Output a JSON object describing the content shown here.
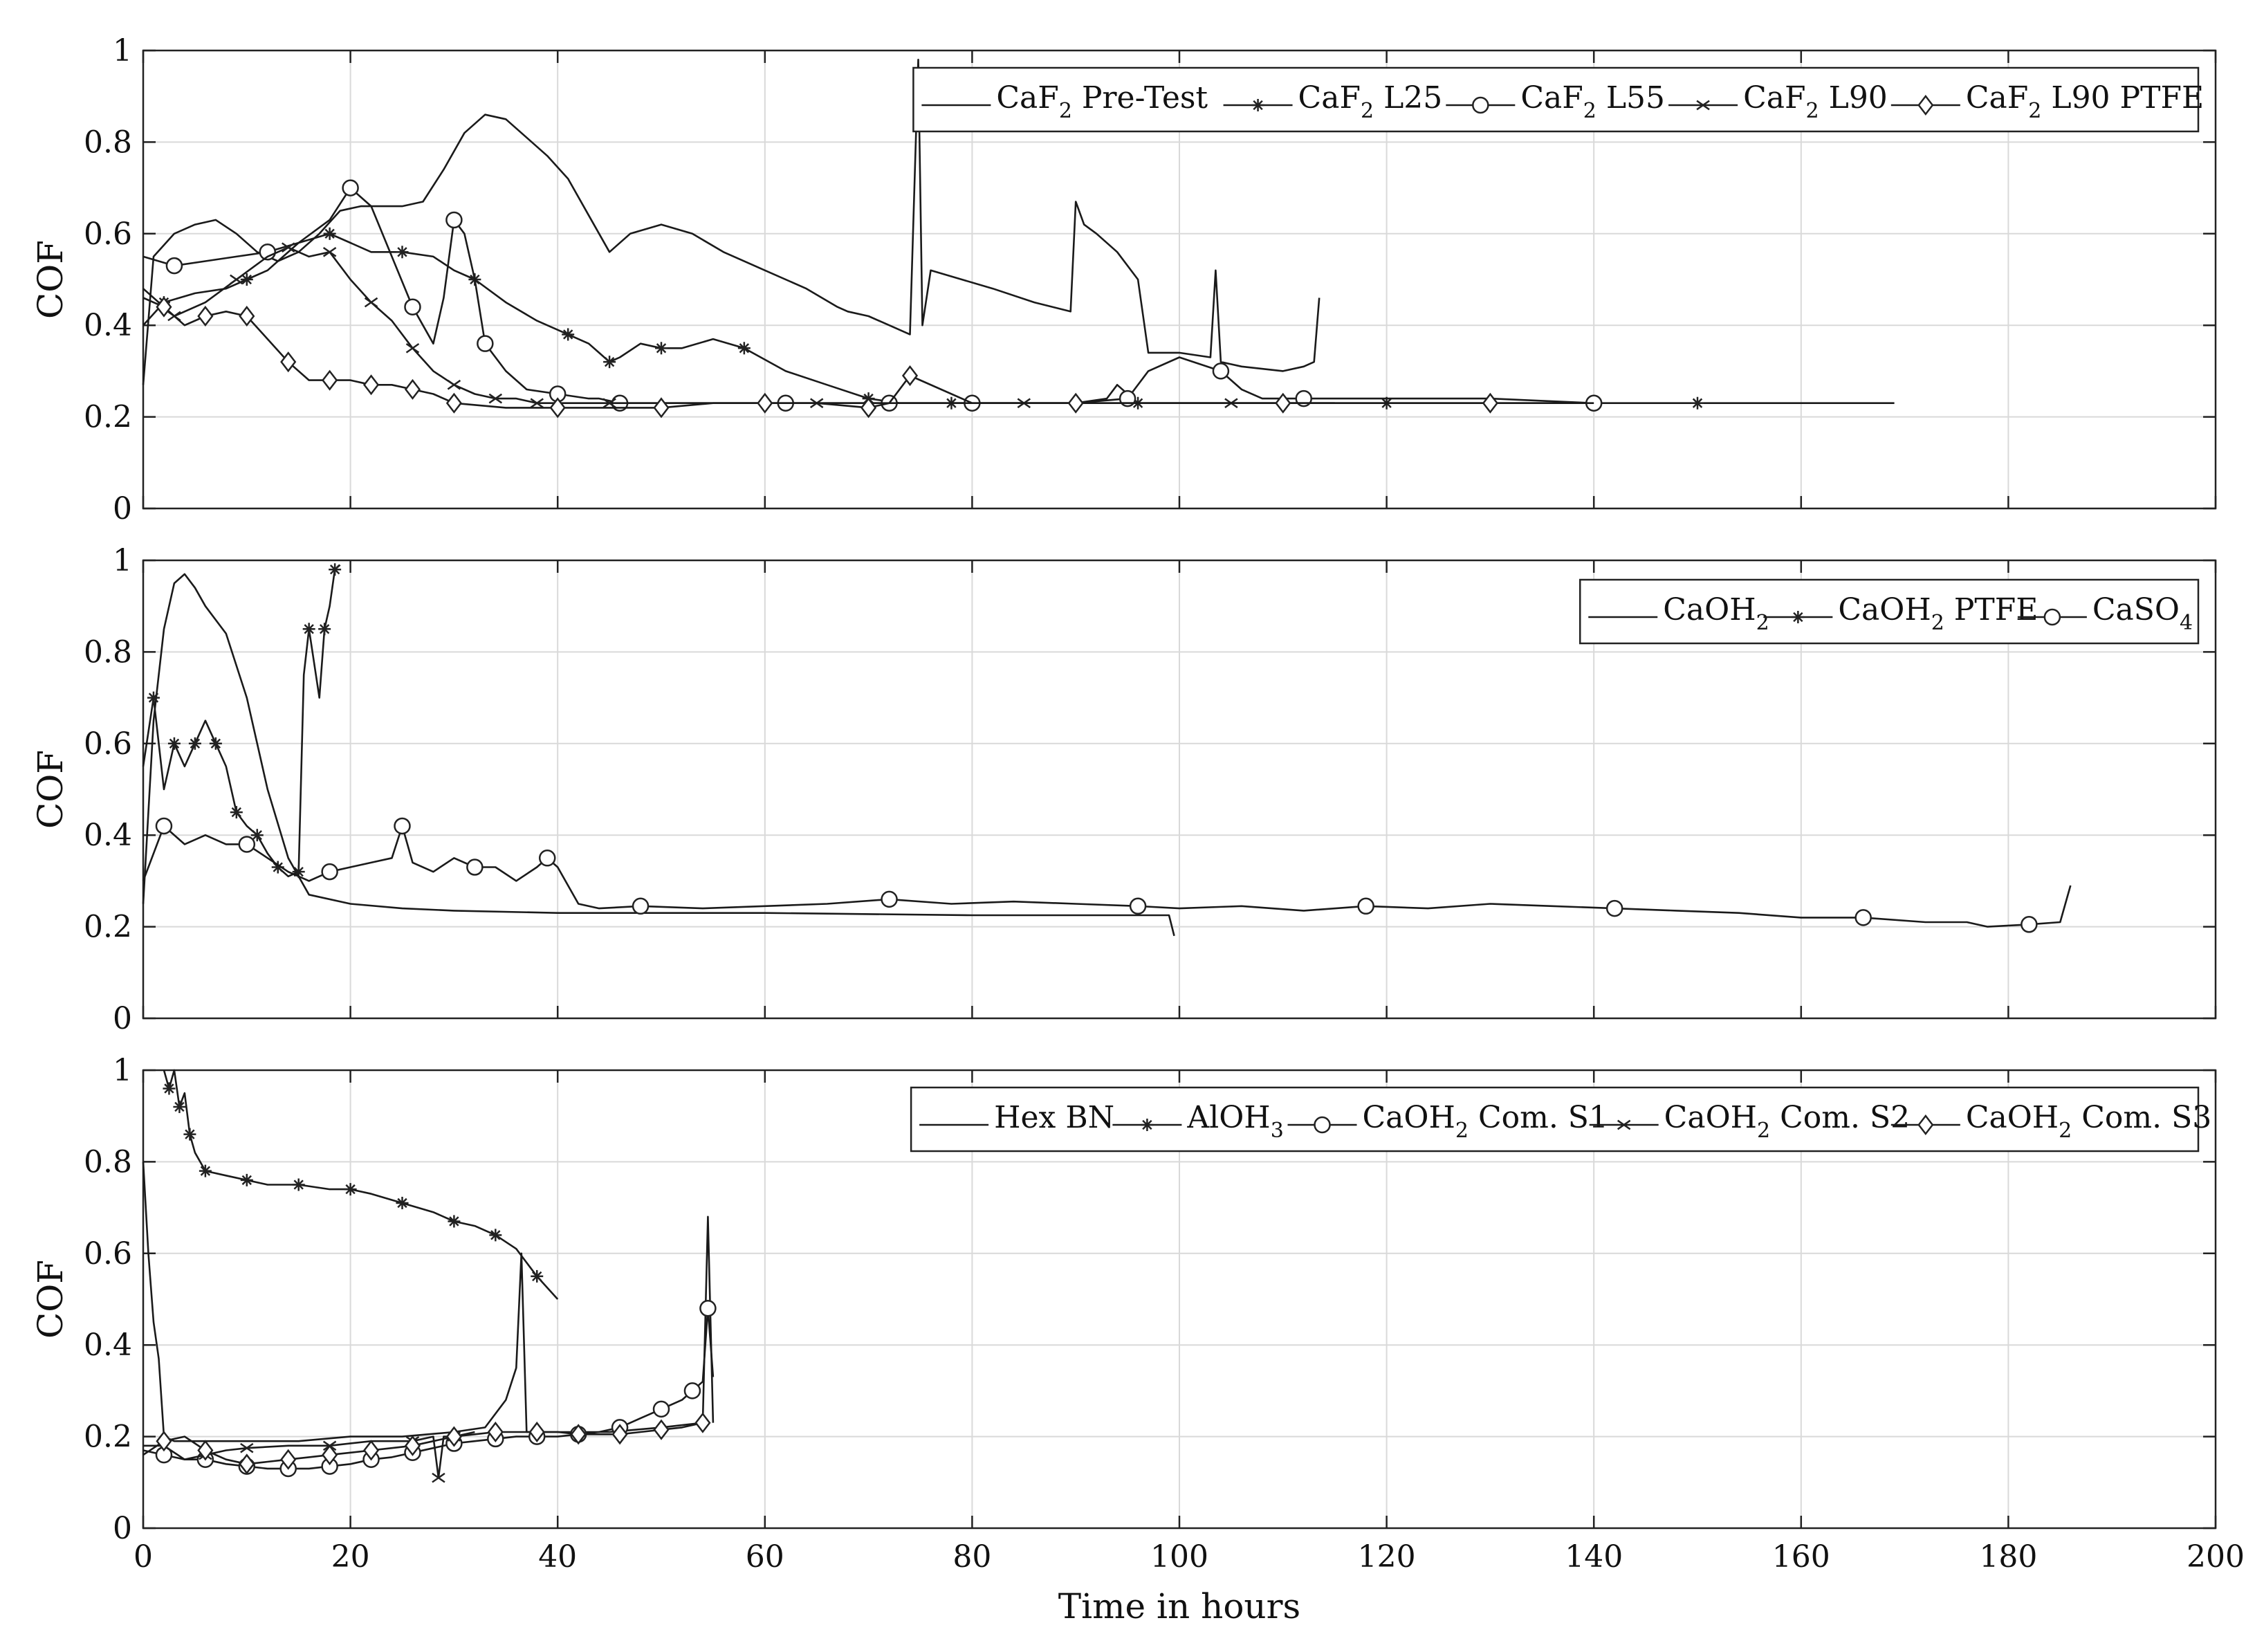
{
  "chart_data": [
    {
      "type": "line",
      "title": "",
      "xlabel": "",
      "ylabel": "COF",
      "xlim": [
        0,
        200
      ],
      "ylim": [
        0,
        1
      ],
      "xticks": [
        0,
        20,
        40,
        60,
        80,
        100,
        120,
        140,
        160,
        180,
        200
      ],
      "yticks": [
        0,
        0.2,
        0.4,
        0.6,
        0.8,
        1
      ],
      "show_x_tick_labels": false,
      "grid": true,
      "legend_position": "top-right",
      "series": [
        {
          "name": "CaF2 Pre-Test",
          "label_base": "CaF",
          "label_sub": "2",
          "label_rest": " Pre-Test",
          "marker": "none",
          "x": [
            0,
            1,
            3,
            5,
            7,
            9,
            11,
            13,
            15,
            17,
            19,
            21,
            23,
            25,
            27,
            29,
            31,
            33,
            35,
            37,
            39,
            41,
            43,
            45,
            47,
            50,
            53,
            56,
            60,
            64,
            67,
            68,
            70,
            72,
            74,
            74.8,
            75.2,
            76,
            79,
            82,
            86,
            89.5,
            90,
            90.8,
            92,
            94,
            96,
            97,
            100,
            103,
            103.5,
            104,
            106,
            110,
            112,
            113,
            113.5
          ],
          "y": [
            0.27,
            0.55,
            0.6,
            0.62,
            0.63,
            0.6,
            0.56,
            0.54,
            0.56,
            0.6,
            0.65,
            0.66,
            0.66,
            0.66,
            0.67,
            0.74,
            0.82,
            0.86,
            0.85,
            0.81,
            0.77,
            0.72,
            0.64,
            0.56,
            0.6,
            0.62,
            0.6,
            0.56,
            0.52,
            0.48,
            0.44,
            0.43,
            0.42,
            0.4,
            0.38,
            0.98,
            0.4,
            0.52,
            0.5,
            0.48,
            0.45,
            0.43,
            0.67,
            0.62,
            0.6,
            0.56,
            0.5,
            0.34,
            0.34,
            0.33,
            0.52,
            0.32,
            0.31,
            0.3,
            0.31,
            0.32,
            0.46
          ]
        },
        {
          "name": "CaF2 L25",
          "label_base": "CaF",
          "label_sub": "2",
          "label_rest": " L25",
          "marker": "star",
          "x": [
            0,
            2,
            5,
            8,
            10,
            12,
            15,
            18,
            20,
            22,
            25,
            28,
            30,
            32,
            35,
            38,
            41,
            43,
            44,
            45,
            46,
            48,
            50,
            52,
            55,
            58,
            62,
            66,
            70,
            73,
            76,
            78,
            80,
            85,
            90,
            93,
            94,
            96,
            100,
            110,
            120,
            130,
            140,
            150,
            160,
            169
          ],
          "y": [
            0.4,
            0.45,
            0.47,
            0.48,
            0.5,
            0.52,
            0.58,
            0.6,
            0.58,
            0.56,
            0.56,
            0.55,
            0.52,
            0.5,
            0.45,
            0.41,
            0.38,
            0.36,
            0.34,
            0.32,
            0.33,
            0.36,
            0.35,
            0.35,
            0.37,
            0.35,
            0.3,
            0.27,
            0.24,
            0.23,
            0.23,
            0.23,
            0.23,
            0.23,
            0.23,
            0.24,
            0.27,
            0.23,
            0.23,
            0.23,
            0.23,
            0.23,
            0.23,
            0.23,
            0.23,
            0.23
          ]
        },
        {
          "name": "CaF2 L55",
          "label_base": "CaF",
          "label_sub": "2",
          "label_rest": " L55",
          "marker": "circle",
          "x": [
            0,
            3,
            6,
            9,
            12,
            15,
            18,
            20,
            22,
            24,
            26,
            28,
            29,
            30,
            31,
            32,
            33,
            35,
            37,
            40,
            43,
            44,
            46,
            48,
            55,
            62,
            66,
            70,
            72,
            76,
            78,
            80,
            85,
            90,
            95,
            97,
            100,
            104,
            106,
            108,
            112,
            120,
            130,
            140
          ],
          "y": [
            0.55,
            0.53,
            0.54,
            0.55,
            0.56,
            0.58,
            0.63,
            0.7,
            0.66,
            0.55,
            0.44,
            0.36,
            0.46,
            0.63,
            0.6,
            0.5,
            0.36,
            0.3,
            0.26,
            0.25,
            0.24,
            0.24,
            0.23,
            0.23,
            0.23,
            0.23,
            0.23,
            0.23,
            0.23,
            0.23,
            0.23,
            0.23,
            0.23,
            0.23,
            0.24,
            0.3,
            0.33,
            0.3,
            0.26,
            0.24,
            0.24,
            0.24,
            0.24,
            0.23
          ]
        },
        {
          "name": "CaF2 L90",
          "label_base": "CaF",
          "label_sub": "2",
          "label_rest": " L90",
          "marker": "x",
          "x": [
            0,
            3,
            6,
            9,
            12,
            14,
            16,
            18,
            20,
            22,
            24,
            26,
            28,
            30,
            32,
            34,
            36,
            38,
            40,
            45,
            55,
            65,
            75,
            85,
            95,
            105,
            115
          ],
          "y": [
            0.48,
            0.42,
            0.45,
            0.5,
            0.55,
            0.57,
            0.55,
            0.56,
            0.5,
            0.45,
            0.41,
            0.35,
            0.3,
            0.27,
            0.25,
            0.24,
            0.24,
            0.23,
            0.23,
            0.23,
            0.23,
            0.23,
            0.23,
            0.23,
            0.23,
            0.23,
            0.23
          ]
        },
        {
          "name": "CaF2 L90 PTFE",
          "label_base": "CaF",
          "label_sub": "2",
          "label_rest": " L90 PTFE",
          "marker": "diamond",
          "x": [
            0,
            2,
            4,
            6,
            8,
            10,
            12,
            14,
            16,
            18,
            20,
            22,
            24,
            26,
            28,
            30,
            35,
            40,
            45,
            50,
            55,
            60,
            65,
            70,
            72,
            74,
            80,
            90,
            100,
            110,
            120,
            130,
            140
          ],
          "y": [
            0.46,
            0.44,
            0.4,
            0.42,
            0.43,
            0.42,
            0.37,
            0.32,
            0.28,
            0.28,
            0.28,
            0.27,
            0.27,
            0.26,
            0.25,
            0.23,
            0.22,
            0.22,
            0.22,
            0.22,
            0.23,
            0.23,
            0.23,
            0.22,
            0.23,
            0.29,
            0.23,
            0.23,
            0.23,
            0.23,
            0.23,
            0.23,
            0.23
          ]
        }
      ]
    },
    {
      "type": "line",
      "title": "",
      "xlabel": "",
      "ylabel": "COF",
      "xlim": [
        0,
        200
      ],
      "ylim": [
        0,
        1
      ],
      "xticks": [
        0,
        20,
        40,
        60,
        80,
        100,
        120,
        140,
        160,
        180,
        200
      ],
      "yticks": [
        0,
        0.2,
        0.4,
        0.6,
        0.8,
        1
      ],
      "show_x_tick_labels": false,
      "grid": true,
      "legend_position": "top-right",
      "series": [
        {
          "name": "CaOH2",
          "label_base": "CaOH",
          "label_sub": "2",
          "label_rest": "",
          "marker": "none",
          "x": [
            0,
            1,
            2,
            3,
            4,
            5,
            6,
            8,
            10,
            12,
            14,
            16,
            20,
            25,
            30,
            40,
            50,
            60,
            80,
            99,
            99.5
          ],
          "y": [
            0.25,
            0.65,
            0.85,
            0.95,
            0.97,
            0.94,
            0.9,
            0.84,
            0.7,
            0.5,
            0.35,
            0.27,
            0.25,
            0.24,
            0.235,
            0.23,
            0.23,
            0.23,
            0.225,
            0.225,
            0.18
          ]
        },
        {
          "name": "CaOH2 PTFE",
          "label_base": "CaOH",
          "label_sub": "2",
          "label_rest": " PTFE",
          "marker": "star",
          "x": [
            0,
            1,
            2,
            3,
            4,
            5,
            6,
            7,
            8,
            9,
            10,
            11,
            12,
            13,
            14,
            15,
            15.5,
            16,
            17,
            17.5,
            18,
            18.5,
            19
          ],
          "y": [
            0.55,
            0.7,
            0.5,
            0.6,
            0.55,
            0.6,
            0.65,
            0.6,
            0.55,
            0.45,
            0.42,
            0.4,
            0.36,
            0.33,
            0.31,
            0.32,
            0.75,
            0.85,
            0.7,
            0.85,
            0.9,
            0.98,
            0.99
          ]
        },
        {
          "name": "CaSO4",
          "label_base": "CaSO",
          "label_sub": "4",
          "label_rest": "",
          "marker": "circle",
          "x": [
            0,
            2,
            4,
            6,
            8,
            10,
            12,
            14,
            16,
            18,
            20,
            22,
            24,
            25,
            26,
            28,
            30,
            32,
            34,
            36,
            38,
            39,
            40,
            42,
            44,
            48,
            54,
            60,
            66,
            72,
            78,
            84,
            90,
            96,
            100,
            106,
            112,
            118,
            124,
            130,
            136,
            142,
            148,
            154,
            160,
            166,
            172,
            176,
            178,
            182,
            185,
            186
          ],
          "y": [
            0.3,
            0.42,
            0.38,
            0.4,
            0.38,
            0.38,
            0.35,
            0.32,
            0.3,
            0.32,
            0.33,
            0.34,
            0.35,
            0.42,
            0.34,
            0.32,
            0.35,
            0.33,
            0.33,
            0.3,
            0.33,
            0.35,
            0.33,
            0.25,
            0.24,
            0.245,
            0.24,
            0.245,
            0.25,
            0.26,
            0.25,
            0.255,
            0.25,
            0.245,
            0.24,
            0.245,
            0.235,
            0.245,
            0.24,
            0.25,
            0.245,
            0.24,
            0.235,
            0.23,
            0.22,
            0.22,
            0.21,
            0.21,
            0.2,
            0.205,
            0.21,
            0.29
          ]
        }
      ]
    },
    {
      "type": "line",
      "title": "",
      "xlabel": "Time in hours",
      "ylabel": "COF",
      "xlim": [
        0,
        200
      ],
      "ylim": [
        0,
        1
      ],
      "xticks": [
        0,
        20,
        40,
        60,
        80,
        100,
        120,
        140,
        160,
        180,
        200
      ],
      "yticks": [
        0,
        0.2,
        0.4,
        0.6,
        0.8,
        1
      ],
      "show_x_tick_labels": true,
      "grid": true,
      "legend_position": "top-right",
      "series": [
        {
          "name": "Hex BN",
          "label_base": "Hex BN",
          "label_sub": "",
          "label_rest": "",
          "marker": "none",
          "x": [
            0,
            0.5,
            1,
            1.5,
            2,
            3,
            5,
            10,
            15,
            20,
            25,
            30,
            33,
            35,
            36,
            36.5,
            37,
            40,
            45,
            50,
            54,
            54.5,
            55
          ],
          "y": [
            0.8,
            0.6,
            0.45,
            0.37,
            0.2,
            0.19,
            0.19,
            0.19,
            0.19,
            0.2,
            0.2,
            0.21,
            0.22,
            0.28,
            0.35,
            0.6,
            0.21,
            0.21,
            0.21,
            0.22,
            0.23,
            0.68,
            0.23
          ]
        },
        {
          "name": "AlOH3",
          "label_base": "AlOH",
          "label_sub": "3",
          "label_rest": "",
          "marker": "star",
          "x": [
            2,
            2.5,
            3,
            3.5,
            4,
            4.5,
            5,
            6,
            8,
            10,
            12,
            15,
            18,
            20,
            22,
            25,
            28,
            30,
            32,
            34,
            36,
            38,
            40
          ],
          "y": [
            1,
            0.96,
            1,
            0.92,
            0.95,
            0.86,
            0.82,
            0.78,
            0.77,
            0.76,
            0.75,
            0.75,
            0.74,
            0.74,
            0.73,
            0.71,
            0.69,
            0.67,
            0.66,
            0.64,
            0.61,
            0.55,
            0.5
          ]
        },
        {
          "name": "CaOH2 Com. S1",
          "label_base": "CaOH",
          "label_sub": "2",
          "label_rest": " Com. S1",
          "marker": "circle",
          "x": [
            0,
            2,
            4,
            6,
            8,
            10,
            12,
            14,
            16,
            18,
            20,
            22,
            24,
            26,
            28,
            30,
            32,
            34,
            36,
            38,
            40,
            42,
            44,
            46,
            48,
            50,
            52,
            53,
            54,
            54.5,
            55
          ],
          "y": [
            0.17,
            0.16,
            0.15,
            0.15,
            0.14,
            0.135,
            0.13,
            0.13,
            0.13,
            0.135,
            0.14,
            0.15,
            0.155,
            0.165,
            0.175,
            0.185,
            0.19,
            0.195,
            0.2,
            0.2,
            0.2,
            0.205,
            0.21,
            0.22,
            0.24,
            0.26,
            0.28,
            0.3,
            0.32,
            0.48,
            0.33
          ]
        },
        {
          "name": "CaOH2 Com. S2",
          "label_base": "CaOH",
          "label_sub": "2",
          "label_rest": " Com. S2",
          "marker": "x",
          "x": [
            0,
            2,
            4,
            6,
            8,
            10,
            14,
            18,
            22,
            26,
            28,
            28.5,
            29,
            30,
            32
          ],
          "y": [
            0.18,
            0.18,
            0.15,
            0.16,
            0.17,
            0.175,
            0.18,
            0.18,
            0.19,
            0.19,
            0.2,
            0.11,
            0.2,
            0.2,
            0.21
          ]
        },
        {
          "name": "CaOH2 Com. S3",
          "label_base": "CaOH",
          "label_sub": "2",
          "label_rest": " Com. S3",
          "marker": "diamond",
          "x": [
            0,
            2,
            4,
            6,
            8,
            10,
            12,
            14,
            16,
            18,
            20,
            22,
            24,
            26,
            28,
            30,
            32,
            34,
            36,
            38,
            40,
            42,
            44,
            46,
            48,
            50,
            52,
            54
          ],
          "y": [
            0.16,
            0.19,
            0.2,
            0.17,
            0.15,
            0.14,
            0.145,
            0.15,
            0.155,
            0.16,
            0.165,
            0.17,
            0.175,
            0.18,
            0.19,
            0.2,
            0.205,
            0.21,
            0.21,
            0.21,
            0.21,
            0.205,
            0.205,
            0.205,
            0.21,
            0.215,
            0.22,
            0.23
          ]
        }
      ]
    }
  ]
}
